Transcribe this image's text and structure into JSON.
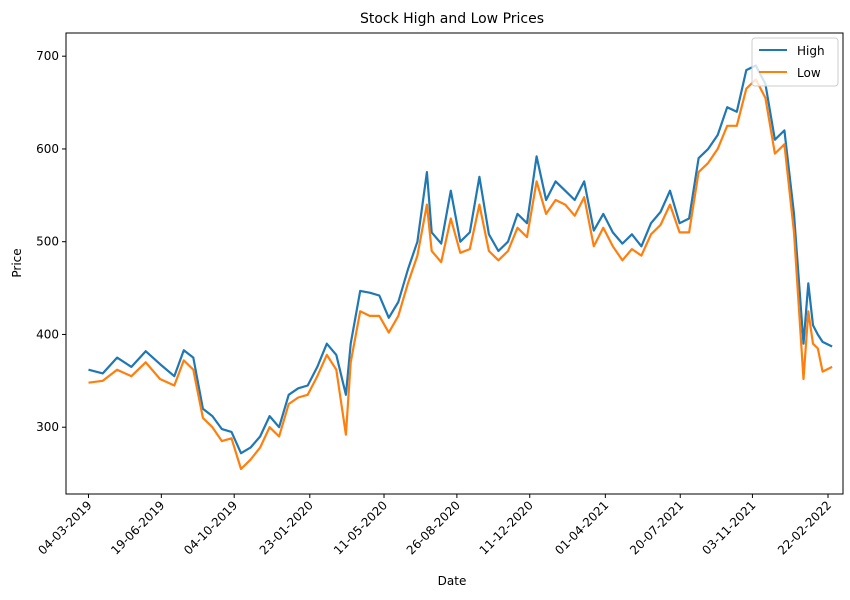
{
  "chart_data": {
    "type": "line",
    "title": "Stock High and Low Prices",
    "xlabel": "Date",
    "ylabel": "Price",
    "x_tick_labels": [
      "04-03-2019",
      "19-06-2019",
      "04-10-2019",
      "23-01-2020",
      "11-05-2020",
      "26-08-2020",
      "11-12-2020",
      "01-04-2021",
      "20-07-2021",
      "03-11-2021",
      "22-02-2022"
    ],
    "y_ticks": [
      300,
      400,
      500,
      600,
      700
    ],
    "ylim": [
      228,
      725
    ],
    "xlim": [
      "2019-01-30",
      "2022-03-16"
    ],
    "grid": false,
    "legend_position": "top-right",
    "x": [
      "2019-03-04",
      "2019-03-25",
      "2019-04-15",
      "2019-05-06",
      "2019-05-27",
      "2019-06-17",
      "2019-07-08",
      "2019-07-22",
      "2019-08-05",
      "2019-08-19",
      "2019-09-02",
      "2019-09-16",
      "2019-09-30",
      "2019-10-14",
      "2019-10-28",
      "2019-11-11",
      "2019-11-25",
      "2019-12-09",
      "2019-12-23",
      "2020-01-06",
      "2020-01-20",
      "2020-02-03",
      "2020-02-17",
      "2020-03-02",
      "2020-03-16",
      "2020-03-23",
      "2020-04-06",
      "2020-04-20",
      "2020-05-04",
      "2020-05-18",
      "2020-06-01",
      "2020-06-15",
      "2020-06-29",
      "2020-07-13",
      "2020-07-20",
      "2020-08-03",
      "2020-08-17",
      "2020-08-31",
      "2020-09-14",
      "2020-09-28",
      "2020-10-12",
      "2020-10-26",
      "2020-11-09",
      "2020-11-23",
      "2020-12-07",
      "2020-12-21",
      "2021-01-04",
      "2021-01-18",
      "2021-02-01",
      "2021-02-15",
      "2021-03-01",
      "2021-03-15",
      "2021-03-29",
      "2021-04-12",
      "2021-04-26",
      "2021-05-10",
      "2021-05-24",
      "2021-06-07",
      "2021-06-21",
      "2021-07-05",
      "2021-07-19",
      "2021-08-02",
      "2021-08-16",
      "2021-08-30",
      "2021-09-13",
      "2021-09-27",
      "2021-10-11",
      "2021-10-25",
      "2021-11-08",
      "2021-11-22",
      "2021-12-06",
      "2021-12-20",
      "2022-01-03",
      "2022-01-17",
      "2022-01-24",
      "2022-01-31",
      "2022-02-07",
      "2022-02-14",
      "2022-02-28"
    ],
    "series": [
      {
        "name": "High",
        "color": "#1f77b4",
        "values": [
          362,
          358,
          375,
          365,
          382,
          368,
          355,
          383,
          375,
          320,
          312,
          298,
          295,
          272,
          278,
          290,
          312,
          300,
          335,
          342,
          345,
          365,
          390,
          378,
          335,
          390,
          447,
          445,
          442,
          418,
          435,
          470,
          500,
          575,
          510,
          498,
          555,
          500,
          510,
          570,
          508,
          490,
          500,
          530,
          520,
          592,
          545,
          565,
          555,
          545,
          565,
          512,
          530,
          510,
          498,
          508,
          495,
          520,
          532,
          555,
          520,
          525,
          590,
          600,
          615,
          645,
          640,
          685,
          690,
          670,
          610,
          620,
          530,
          390,
          455,
          410,
          400,
          392,
          387
        ],
        "_note": "keep"
      },
      {
        "name": "Low",
        "color": "#ff7f0e",
        "values": [
          348,
          350,
          362,
          355,
          370,
          352,
          345,
          372,
          362,
          310,
          300,
          285,
          288,
          255,
          265,
          278,
          300,
          290,
          325,
          332,
          335,
          355,
          378,
          362,
          292,
          370,
          425,
          420,
          420,
          402,
          420,
          455,
          485,
          540,
          490,
          478,
          525,
          488,
          492,
          540,
          490,
          480,
          490,
          515,
          505,
          565,
          530,
          545,
          540,
          528,
          548,
          495,
          515,
          495,
          480,
          492,
          485,
          508,
          518,
          540,
          510,
          510,
          575,
          585,
          600,
          625,
          625,
          665,
          675,
          655,
          595,
          605,
          510,
          352,
          425,
          390,
          385,
          360,
          365
        ]
      }
    ]
  }
}
